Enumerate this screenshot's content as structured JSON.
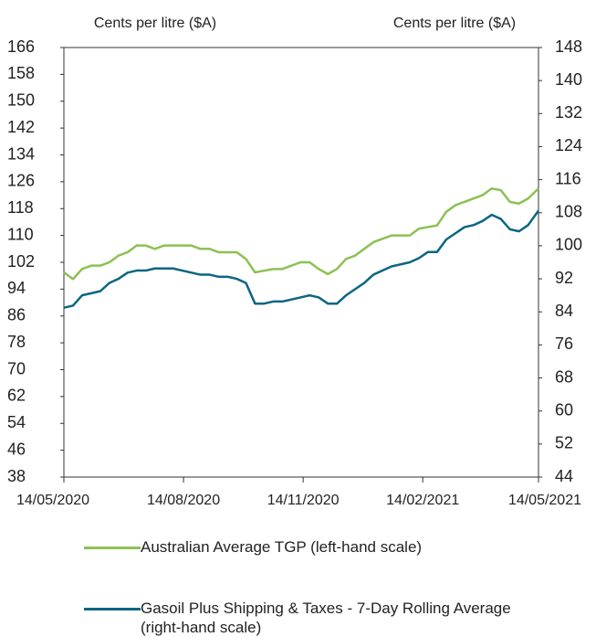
{
  "chart_data": {
    "type": "line",
    "y_label": "Cents per litre ($A)",
    "y2_label": "Cents per litre ($A)",
    "x": [
      "14/05/2020",
      "21/05/2020",
      "28/05/2020",
      "04/06/2020",
      "11/06/2020",
      "18/06/2020",
      "25/06/2020",
      "02/07/2020",
      "09/07/2020",
      "16/07/2020",
      "23/07/2020",
      "30/07/2020",
      "06/08/2020",
      "13/08/2020",
      "20/08/2020",
      "27/08/2020",
      "03/09/2020",
      "10/09/2020",
      "17/09/2020",
      "24/09/2020",
      "01/10/2020",
      "08/10/2020",
      "15/10/2020",
      "22/10/2020",
      "29/10/2020",
      "05/11/2020",
      "12/11/2020",
      "19/11/2020",
      "26/11/2020",
      "03/12/2020",
      "10/12/2020",
      "17/12/2020",
      "24/12/2020",
      "31/12/2020",
      "07/01/2021",
      "14/01/2021",
      "21/01/2021",
      "28/01/2021",
      "04/02/2021",
      "11/02/2021",
      "18/02/2021",
      "25/02/2021",
      "04/03/2021",
      "11/03/2021",
      "18/03/2021",
      "25/03/2021",
      "01/04/2021",
      "08/04/2021",
      "15/04/2021",
      "22/04/2021",
      "29/04/2021",
      "06/05/2021",
      "14/05/2021"
    ],
    "xlim": [
      "14/05/2020",
      "14/05/2021"
    ],
    "xticks": [
      "14/05/2020",
      "14/08/2020",
      "14/11/2020",
      "14/02/2021",
      "14/05/2021"
    ],
    "ylim": [
      38,
      166
    ],
    "yticks": [
      38,
      46,
      54,
      62,
      70,
      78,
      86,
      94,
      102,
      110,
      118,
      126,
      134,
      142,
      150,
      158,
      166
    ],
    "y2lim": [
      44,
      148
    ],
    "y2ticks": [
      44,
      52,
      60,
      68,
      76,
      84,
      92,
      100,
      108,
      116,
      124,
      132,
      140,
      148
    ],
    "series": [
      {
        "name": "Australian Average TGP (left-hand scale)",
        "color": "#8cc152",
        "axis": "y",
        "values": [
          99,
          97,
          100,
          101,
          101,
          102,
          104,
          105,
          107,
          107,
          106,
          107,
          107,
          107,
          107,
          106,
          106,
          105,
          105,
          105,
          103,
          99,
          99.5,
          100,
          100,
          101,
          102,
          102,
          100,
          98.5,
          100,
          103,
          104,
          106,
          108,
          109,
          110,
          110,
          110,
          112,
          112.5,
          113,
          117,
          119,
          120,
          121,
          122,
          124,
          123.5,
          120,
          119.5,
          121,
          124
        ]
      },
      {
        "name": "Gasoil Plus Shipping & Taxes - 7-Day Rolling Average (right-hand scale)",
        "color": "#0b6583",
        "axis": "y2",
        "values": [
          85,
          85.5,
          88,
          88.5,
          89,
          91,
          92,
          93.5,
          94,
          94,
          94.5,
          94.5,
          94.5,
          94,
          93.5,
          93,
          93,
          92.5,
          92.5,
          92,
          91,
          86,
          86,
          86.5,
          86.5,
          87,
          87.5,
          88,
          87.5,
          86,
          86,
          88,
          89.5,
          91,
          93,
          94,
          95,
          95.5,
          96,
          97,
          98.5,
          98.5,
          101.5,
          103,
          104.5,
          105,
          106,
          107.5,
          106.5,
          104,
          103.5,
          105,
          108.5
        ]
      }
    ]
  }
}
